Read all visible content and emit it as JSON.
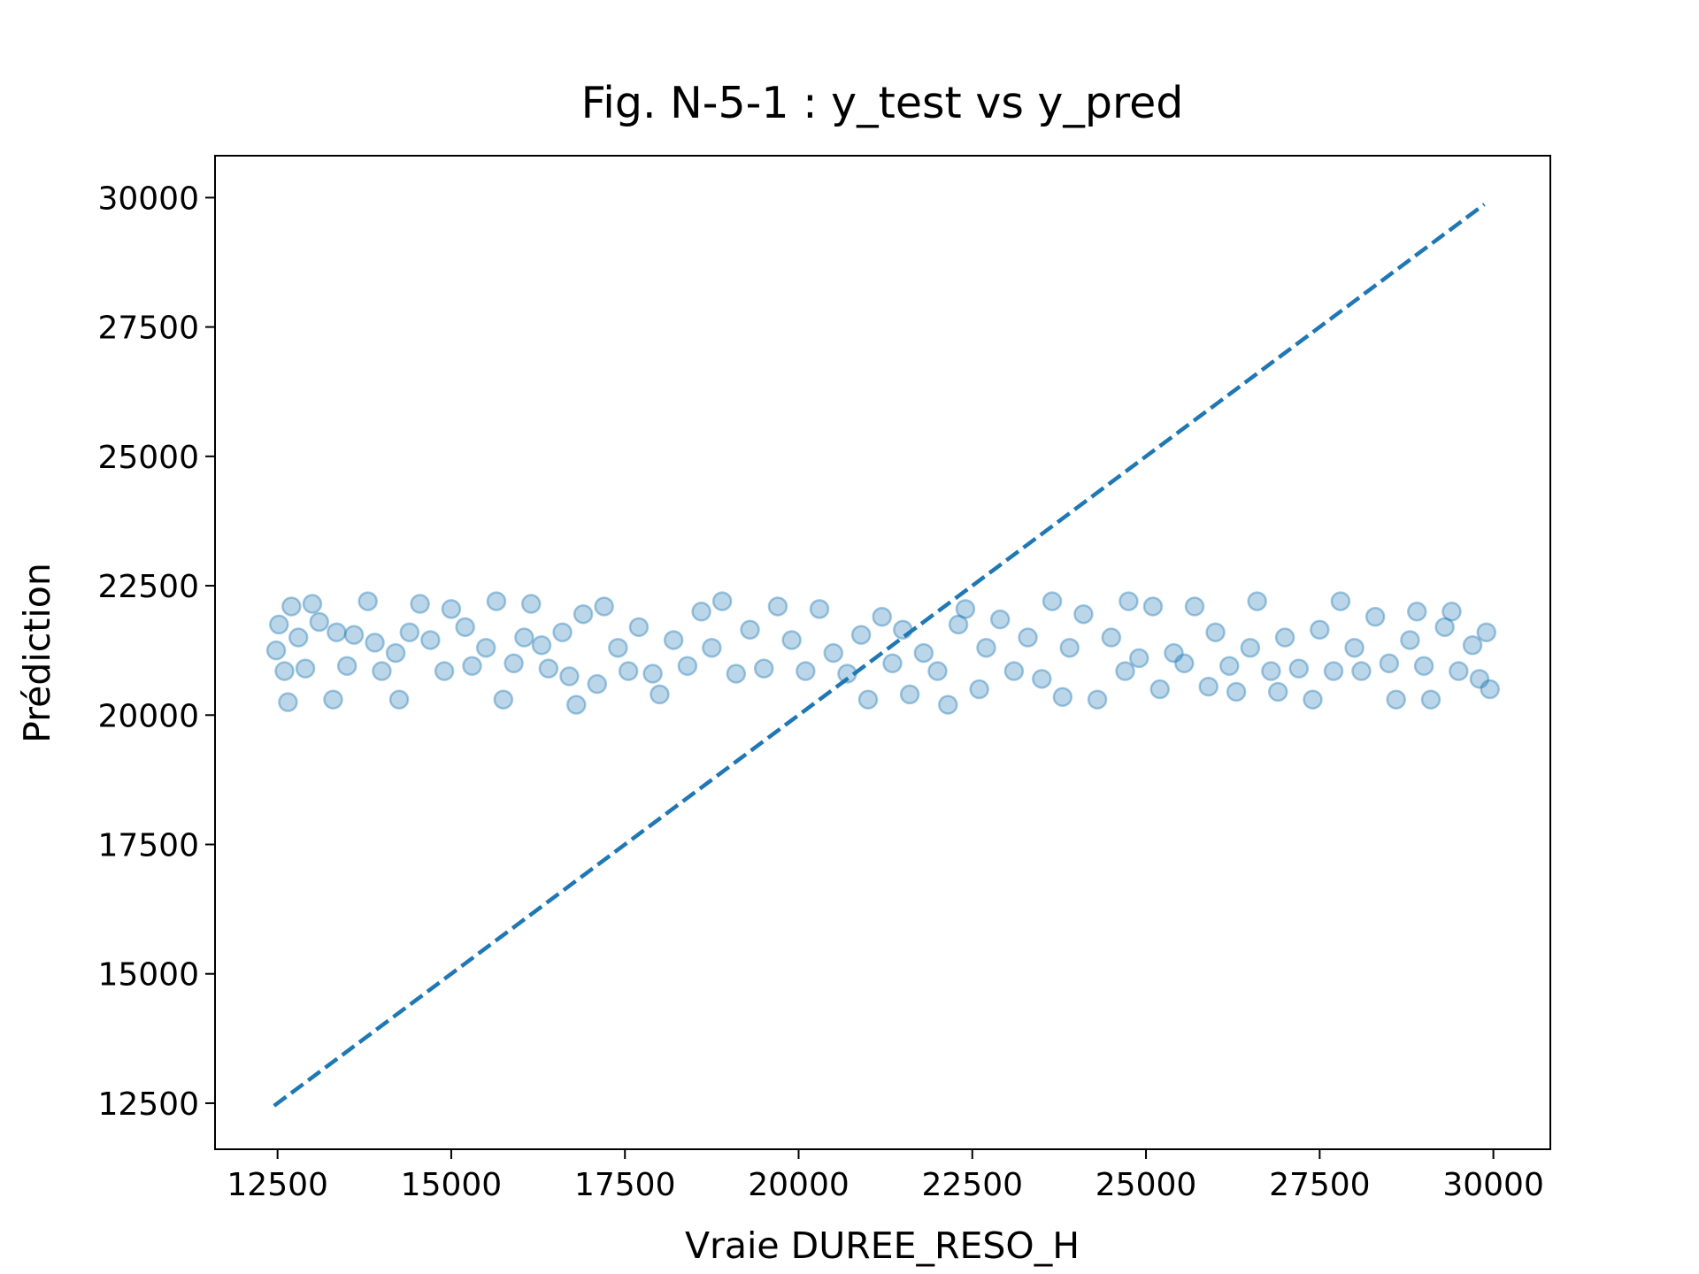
{
  "chart_data": {
    "type": "scatter",
    "title": "Fig. N-5-1 : y_test vs y_pred",
    "x_label": "Vraie DUREE_RESO_H",
    "y_label": "Prédiction",
    "color": "#1f77b4",
    "x": [
      12480,
      12520,
      12600,
      12650,
      12700,
      12800,
      12900,
      13000,
      13100,
      13300,
      13350,
      13500,
      13600,
      13800,
      13900,
      14000,
      14200,
      14250,
      14400,
      14550,
      14700,
      14900,
      15000,
      15200,
      15300,
      15500,
      15650,
      15750,
      15900,
      16050,
      16150,
      16300,
      16400,
      16600,
      16700,
      16800,
      16900,
      17100,
      17200,
      17400,
      17550,
      17700,
      17900,
      18000,
      18200,
      18400,
      18600,
      18750,
      18900,
      19100,
      19300,
      19500,
      19700,
      19900,
      20100,
      20300,
      20500,
      20700,
      20900,
      21000,
      21200,
      21350,
      21500,
      21600,
      21800,
      22000,
      22150,
      22300,
      22400,
      22600,
      22700,
      22900,
      23100,
      23300,
      23500,
      23650,
      23800,
      23900,
      24100,
      24300,
      24500,
      24700,
      24750,
      24900,
      25100,
      25200,
      25400,
      25550,
      25700,
      25900,
      26000,
      26200,
      26300,
      26500,
      26600,
      26800,
      26900,
      27000,
      27200,
      27400,
      27500,
      27700,
      27800,
      28000,
      28100,
      28300,
      28500,
      28600,
      28800,
      28900,
      29000,
      29100,
      29300,
      29400,
      29500,
      29700,
      29800,
      29900,
      29950
    ],
    "values": [
      21250,
      21750,
      20850,
      20250,
      22100,
      21500,
      20900,
      22150,
      21800,
      20300,
      21600,
      20950,
      21550,
      22200,
      21400,
      20850,
      21200,
      20300,
      21600,
      22150,
      21450,
      20850,
      22050,
      21700,
      20950,
      21300,
      22200,
      20300,
      21000,
      21500,
      22150,
      21350,
      20900,
      21600,
      20750,
      20200,
      21950,
      20600,
      22100,
      21300,
      20850,
      21700,
      20800,
      20400,
      21450,
      20950,
      22000,
      21300,
      22200,
      20800,
      21650,
      20900,
      22100,
      21450,
      20850,
      22050,
      21200,
      20800,
      21550,
      20300,
      21900,
      21000,
      21650,
      20400,
      21200,
      20850,
      20200,
      21750,
      22050,
      20500,
      21300,
      21850,
      20850,
      21500,
      20700,
      22200,
      20350,
      21300,
      21950,
      20300,
      21500,
      20850,
      22200,
      21100,
      22100,
      20500,
      21200,
      21000,
      22100,
      20550,
      21600,
      20950,
      20450,
      21300,
      22200,
      20850,
      20450,
      21500,
      20900,
      20300,
      21650,
      20850,
      22200,
      21300,
      20850,
      21900,
      21000,
      20300,
      21450,
      22000,
      20950,
      20300,
      21700,
      22000,
      20850,
      21350,
      20700,
      21600,
      20500
    ],
    "reference_line": {
      "x": [
        12450,
        29870
      ],
      "values": [
        12450,
        29870
      ],
      "style": "dashed"
    },
    "xlim": [
      11600,
      30820
    ],
    "ylim": [
      11610,
      30810
    ],
    "xticks": [
      12500,
      15000,
      17500,
      20000,
      22500,
      25000,
      27500,
      30000
    ],
    "yticks": [
      12500,
      15000,
      17500,
      20000,
      22500,
      25000,
      27500,
      30000
    ]
  }
}
